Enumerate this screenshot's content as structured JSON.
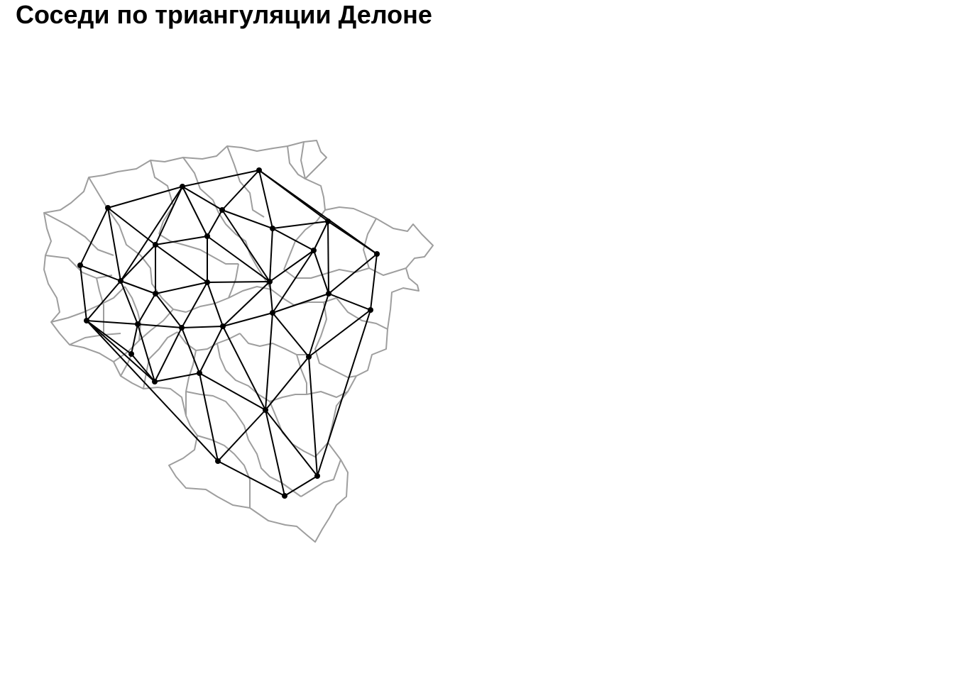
{
  "title": "Соседи по триангуляции Делоне",
  "colors": {
    "borders": "#9e9e9e",
    "edges": "#000000",
    "nodes": "#000000",
    "background": "#ffffff"
  }
}
